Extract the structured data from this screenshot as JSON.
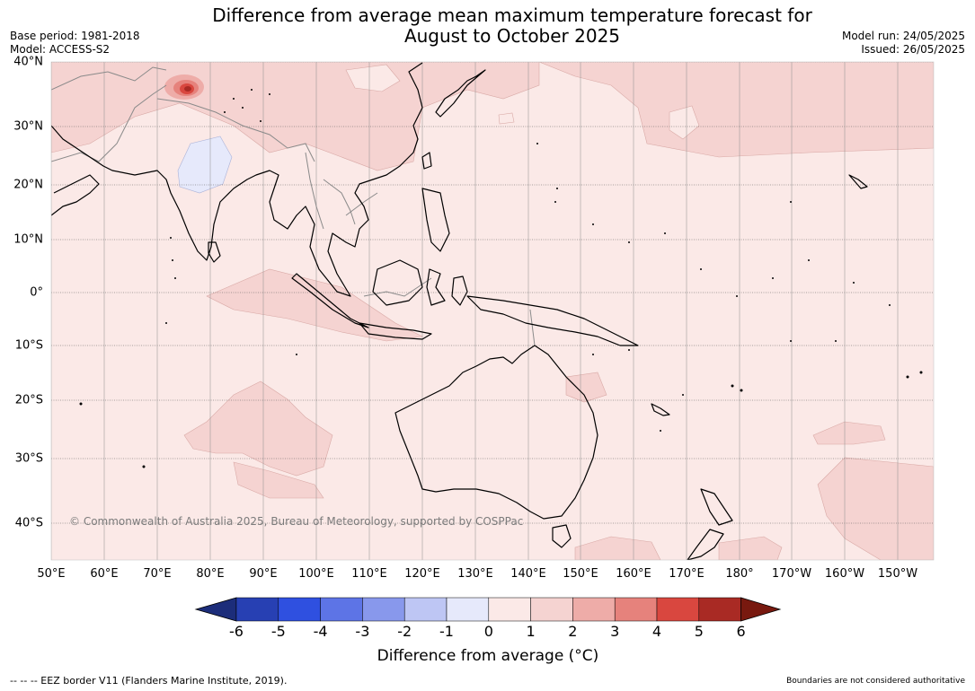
{
  "title_line1": "Difference from average mean maximum temperature forecast for",
  "title_line2": "August to October 2025",
  "base_period": "Base period: 1981-2018",
  "model": "Model: ACCESS-S2",
  "model_run": "Model run: 24/05/2025",
  "issued": "Issued: 26/05/2025",
  "copyright": "© Commonwealth of Australia 2025, Bureau of Meteorology, supported by COSPPac",
  "lon_labels": [
    "50°E",
    "60°E",
    "70°E",
    "80°E",
    "90°E",
    "100°E",
    "110°E",
    "120°E",
    "130°E",
    "140°E",
    "150°E",
    "160°E",
    "170°E",
    "180°",
    "170°W",
    "160°W",
    "150°W"
  ],
  "lat_labels": [
    "40°N",
    "30°N",
    "20°N",
    "10°N",
    "0°",
    "10°S",
    "20°S",
    "30°S",
    "40°S"
  ],
  "colorbar": {
    "label": "Difference from average (°C)",
    "ticks": [
      "-6",
      "-5",
      "-4",
      "-3",
      "-2",
      "-1",
      "0",
      "1",
      "2",
      "3",
      "4",
      "5",
      "6"
    ],
    "colors": [
      "#1c2d7a",
      "#2740b3",
      "#2f50e0",
      "#5d74e6",
      "#8898ec",
      "#bec6f4",
      "#e6e9fb",
      "#fbe9e7",
      "#f5d3d1",
      "#eeaca8",
      "#e6827c",
      "#d9473f",
      "#a92a24",
      "#78190f"
    ]
  },
  "footer_left": "--  --  -- EEZ border V11 (Flanders Marine Institute, 2019).",
  "footer_right": "Boundaries are not considered authoritative"
}
